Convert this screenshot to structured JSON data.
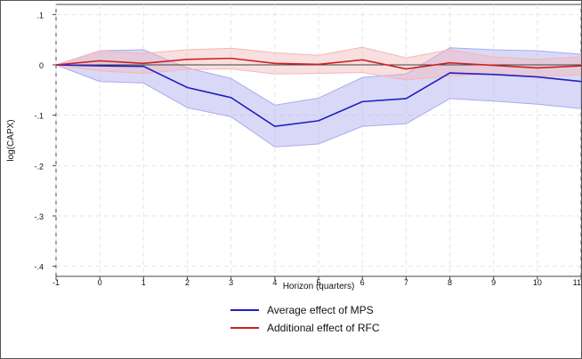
{
  "chart_data": {
    "type": "line",
    "xlabel": "Horizon (quarters)",
    "ylabel": "log(CAPX)",
    "x": [
      -1,
      0,
      1,
      2,
      3,
      4,
      5,
      6,
      7,
      8,
      9,
      10,
      11
    ],
    "xticks": [
      "-1",
      "0",
      "1",
      "2",
      "3",
      "4",
      "5",
      "6",
      "7",
      "8",
      "9",
      "10",
      "11"
    ],
    "yticks": [
      ".1",
      "0",
      "-.1",
      "-.2",
      "-.3",
      "-.4"
    ],
    "ytick_values": [
      0.1,
      0,
      -0.1,
      -0.2,
      -0.3,
      -0.4
    ],
    "xlim": [
      -1,
      11
    ],
    "ylim": [
      -0.42,
      0.12
    ],
    "grid": true,
    "reference_line": 0,
    "legend_position": "bottom",
    "series": [
      {
        "name": "Average effect of MPS",
        "color": "#1f1fbf",
        "band_color": "#aaaaee",
        "values": [
          0,
          -0.002,
          -0.003,
          -0.045,
          -0.065,
          -0.122,
          -0.111,
          -0.073,
          -0.067,
          -0.016,
          -0.019,
          -0.024,
          -0.033
        ],
        "lower": [
          0,
          -0.033,
          -0.036,
          -0.085,
          -0.103,
          -0.163,
          -0.157,
          -0.122,
          -0.117,
          -0.067,
          -0.072,
          -0.078,
          -0.087
        ],
        "upper": [
          0,
          0.028,
          0.03,
          -0.006,
          -0.027,
          -0.08,
          -0.066,
          -0.025,
          -0.018,
          0.034,
          0.03,
          0.028,
          0.021
        ]
      },
      {
        "name": "Additional effect of RFC",
        "color": "#cc2222",
        "band_color": "#f2b8b8",
        "values": [
          0,
          0.008,
          0.003,
          0.011,
          0.013,
          0.003,
          0.001,
          0.01,
          -0.008,
          0.004,
          -0.001,
          -0.006,
          -0.002
        ],
        "lower": [
          0,
          -0.012,
          -0.017,
          -0.009,
          -0.008,
          -0.018,
          -0.017,
          -0.015,
          -0.03,
          -0.022,
          -0.018,
          -0.023,
          -0.02
        ],
        "upper": [
          0,
          0.028,
          0.023,
          0.03,
          0.033,
          0.024,
          0.019,
          0.035,
          0.014,
          0.03,
          0.016,
          0.011,
          0.016
        ]
      }
    ]
  }
}
